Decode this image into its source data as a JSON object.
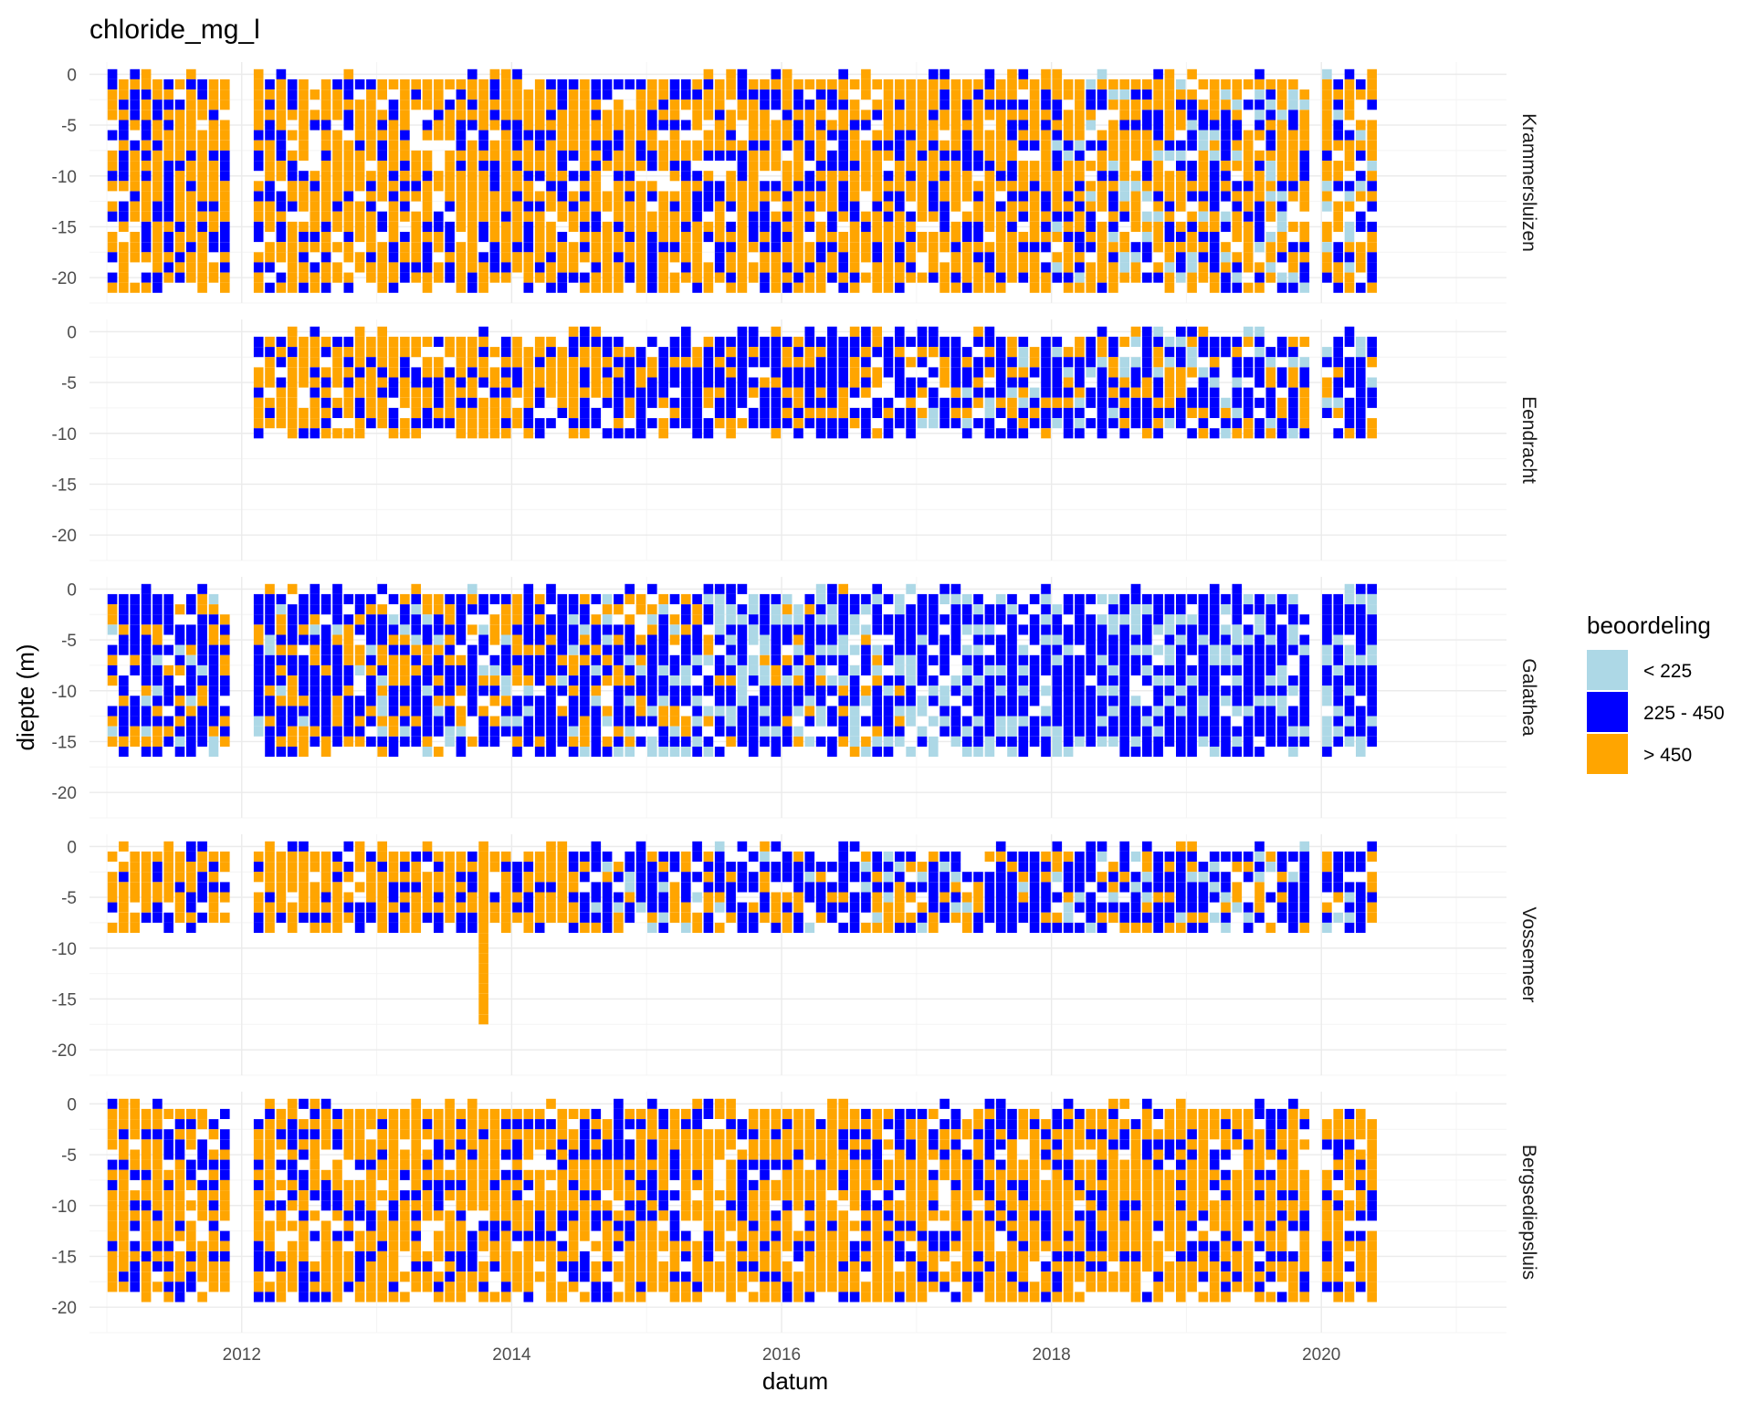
{
  "chart_data": {
    "type": "heatmap",
    "title": "chloride_mg_l",
    "xlabel": "datum",
    "ylabel": "diepte (m)",
    "xlim": [
      "2010-11-15",
      "2021-05-15"
    ],
    "ylim": [
      -22.5,
      1.2
    ],
    "x_ticks": [
      2012,
      2014,
      2016,
      2018,
      2020
    ],
    "x_tick_labels": [
      "2012",
      "2014",
      "2016",
      "2018",
      "2020"
    ],
    "y_ticks": [
      0,
      -5,
      -10,
      -15,
      -20
    ],
    "y_tick_labels": [
      "0",
      "-5",
      "-10",
      "-15",
      "-20"
    ],
    "grid": true,
    "legend": {
      "title": "beoordeling",
      "position": "right",
      "entries": [
        {
          "label": "< 225",
          "color": "#ADD8E6"
        },
        {
          "label": "225 - 450",
          "color": "#0000FF"
        },
        {
          "label": "> 450",
          "color": "#FFA500"
        }
      ]
    },
    "monthly_gaps": [
      "2011-12",
      "2012-01",
      "2019-12",
      "2020-06"
    ],
    "panels": [
      {
        "name": "Krammersluizen",
        "start": "2011-01",
        "end": "2020-06",
        "max_depth": 21,
        "class_by_period": [
          {
            "from": "2011-01",
            "to": "2011-11",
            "dominant": "> 450",
            "secondary": "225 - 450"
          },
          {
            "from": "2012-02",
            "to": "2015-12",
            "dominant": "> 450",
            "secondary": "225 - 450"
          },
          {
            "from": "2016-01",
            "to": "2017-12",
            "dominant": "> 450",
            "secondary": "225 - 450"
          },
          {
            "from": "2018-01",
            "to": "2020-06",
            "dominant": "> 450",
            "secondary": "225 - 450",
            "minor": "< 225"
          }
        ]
      },
      {
        "name": "Eendracht",
        "start": "2012-02",
        "end": "2020-06",
        "max_depth": 10,
        "class_by_period": [
          {
            "from": "2012-02",
            "to": "2014-06",
            "dominant": "> 450",
            "secondary": "225 - 450"
          },
          {
            "from": "2014-07",
            "to": "2016-12",
            "dominant": "225 - 450",
            "secondary": "> 450"
          },
          {
            "from": "2017-01",
            "to": "2020-06",
            "dominant": "225 - 450",
            "secondary": "> 450",
            "minor": "< 225"
          }
        ]
      },
      {
        "name": "Galathea",
        "start": "2011-01",
        "end": "2020-06",
        "max_depth": 16,
        "class_by_period": [
          {
            "from": "2011-01",
            "to": "2014-12",
            "dominant": "225 - 450",
            "secondary": "> 450",
            "minor": "< 225"
          },
          {
            "from": "2015-01",
            "to": "2016-12",
            "dominant": "225 - 450",
            "secondary": "< 225",
            "minor": "> 450"
          },
          {
            "from": "2017-01",
            "to": "2020-06",
            "dominant": "225 - 450",
            "secondary": "< 225"
          }
        ]
      },
      {
        "name": "Vossemeer",
        "start": "2011-01",
        "end": "2020-06",
        "max_depth": 8,
        "outlier": {
          "date": "2013-10",
          "max_depth": 17,
          "class": "> 450"
        },
        "class_by_period": [
          {
            "from": "2011-01",
            "to": "2014-06",
            "dominant": "> 450",
            "secondary": "225 - 450"
          },
          {
            "from": "2014-07",
            "to": "2020-06",
            "dominant": "225 - 450",
            "secondary": "> 450",
            "minor": "< 225"
          }
        ]
      },
      {
        "name": "Bergsediepsluis",
        "start": "2011-01",
        "end": "2020-06",
        "max_depth": 19,
        "class_by_period": [
          {
            "from": "2011-01",
            "to": "2015-12",
            "dominant": "> 450",
            "secondary": "225 - 450"
          },
          {
            "from": "2016-01",
            "to": "2020-06",
            "dominant": "> 450",
            "secondary": "225 - 450"
          }
        ]
      }
    ]
  }
}
